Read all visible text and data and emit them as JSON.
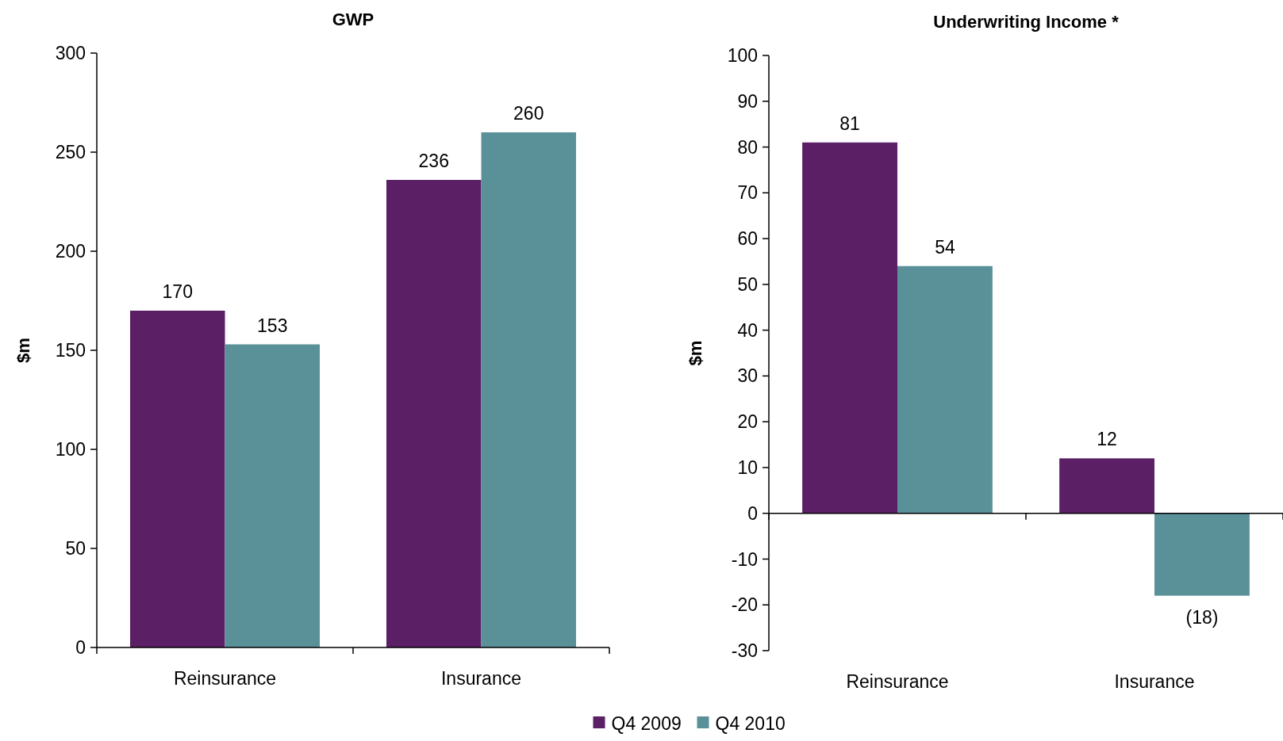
{
  "chart_data": [
    {
      "type": "bar",
      "title": "GWP",
      "ylabel": "$m",
      "categories": [
        "Reinsurance",
        "Insurance"
      ],
      "series": [
        {
          "name": "Q4 2009",
          "color": "#5b1f66",
          "values": [
            170,
            236
          ]
        },
        {
          "name": "Q4 2010",
          "color": "#5a9199",
          "values": [
            153,
            260
          ]
        }
      ],
      "ylim": [
        0,
        300
      ],
      "yticks": [
        0,
        50,
        100,
        150,
        200,
        250,
        300
      ],
      "data_labels": true,
      "legend": "bottom"
    },
    {
      "type": "bar",
      "title": "Underwriting Income *",
      "ylabel": "$m",
      "categories": [
        "Reinsurance",
        "Insurance"
      ],
      "series": [
        {
          "name": "Q4 2009",
          "color": "#5b1f66",
          "values": [
            81,
            12
          ],
          "value_labels": [
            "81",
            "12"
          ]
        },
        {
          "name": "Q4 2010",
          "color": "#5a9199",
          "values": [
            54,
            -18
          ],
          "value_labels": [
            "54",
            "(18)"
          ]
        }
      ],
      "ylim": [
        -30,
        100
      ],
      "yticks": [
        -30,
        -20,
        -10,
        0,
        10,
        20,
        30,
        40,
        50,
        60,
        70,
        80,
        90,
        100
      ]
    }
  ]
}
